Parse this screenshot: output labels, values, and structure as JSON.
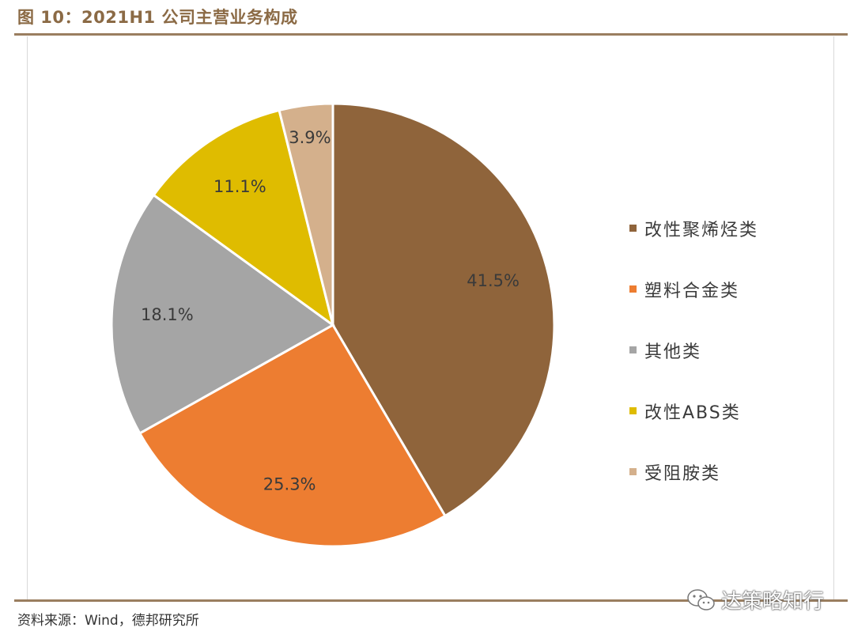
{
  "header": {
    "title": "图 10：2021H1 公司主营业务构成"
  },
  "footer": {
    "source": "资料来源：Wind，德邦研究所"
  },
  "watermark": {
    "text": "达策略知行"
  },
  "chart_data": {
    "type": "pie",
    "title": "",
    "start_angle_deg": 0,
    "direction": "clockwise",
    "legend_position": "right",
    "slices": [
      {
        "label": "改性聚烯烃类",
        "value": 41.5,
        "display": "41.5%",
        "color": "#8f643b"
      },
      {
        "label": "塑料合金类",
        "value": 25.3,
        "display": "25.3%",
        "color": "#ed7d31"
      },
      {
        "label": "其他类",
        "value": 18.1,
        "display": "18.1%",
        "color": "#a5a5a5"
      },
      {
        "label": "改性ABS类",
        "value": 11.1,
        "display": "11.1%",
        "color": "#dfbc00"
      },
      {
        "label": "受阻胺类",
        "value": 3.9,
        "display": "3.9%",
        "color": "#d4b08c"
      }
    ]
  }
}
